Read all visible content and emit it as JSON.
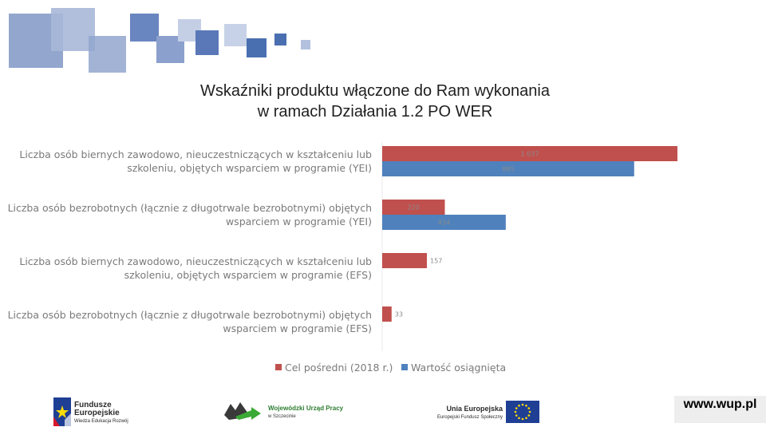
{
  "title": {
    "line1": "Wskaźniki produktu włączone do Ram wykonania",
    "line2": "w ramach Działania 1.2 PO WER"
  },
  "chart_data": {
    "type": "bar",
    "orientation": "horizontal",
    "categories": [
      [
        "Liczba osób biernych zawodowo, nieuczestniczących w kształceniu lub",
        "szkoleniu, objętych wsparciem w programie (YEI)"
      ],
      [
        "Liczba osób bezrobotnych (łącznie z długotrwale bezrobotnymi) objętych",
        "wsparciem w programie (YEI)"
      ],
      [
        "Liczba osób biernych zawodowo, nieuczestniczących w kształceniu lub",
        "szkoleniu, objętych wsparciem w programie (EFS)"
      ],
      [
        "Liczba osób bezrobotnych (łącznie z długotrwale bezrobotnymi) objętych",
        "wsparciem w programie (EFS)"
      ]
    ],
    "series": [
      {
        "name": "Cel pośredni (2018 r.)",
        "color": "#c0504d",
        "values": [
          1037,
          220,
          157,
          33
        ],
        "labels": [
          "1 037",
          "220",
          "157",
          "33"
        ]
      },
      {
        "name": "Wartość osiągnięta",
        "color": "#4f81bd",
        "values": [
          885,
          434,
          null,
          null
        ],
        "labels": [
          "885",
          "434",
          "",
          ""
        ]
      }
    ],
    "xlim": [
      0,
      1037
    ],
    "grid": false,
    "legend_position": "bottom"
  },
  "logos": {
    "fe": {
      "line1": "Fundusze",
      "line2": "Europejskie",
      "line3": "Wiedza Edukacja Rozwój"
    },
    "wup": {
      "line1": "Wojewódzki Urząd Pracy",
      "line2": "w Szczecinie"
    },
    "ue": {
      "line1": "Unia Europejska",
      "line2": "Europejski Fundusz Społeczny"
    }
  },
  "url": "www.wup.pl",
  "colors": {
    "deco_blue": "#4a6fb0",
    "eu_flag": "#1f3f95",
    "eu_star": "#ffdd00"
  }
}
